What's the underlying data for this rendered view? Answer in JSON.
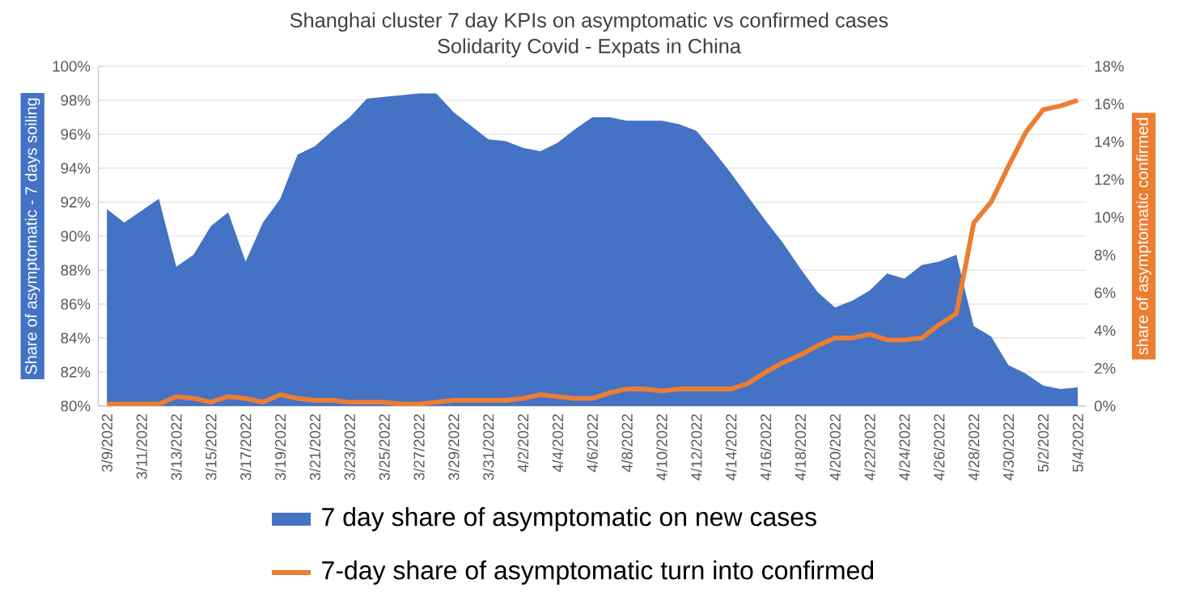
{
  "chart_data": {
    "type": "area",
    "title": "Shanghai cluster 7 day KPIs on asymptomatic vs confirmed cases",
    "subtitle": "Solidarity Covid - Expats in China",
    "ylabel": "Share of asymptomatic - 7 days soiling",
    "y2label": "share of asymptomatic confirmed",
    "categories": [
      "3/9/2022",
      null,
      "3/11/2022",
      null,
      "3/13/2022",
      null,
      "3/15/2022",
      null,
      "3/17/2022",
      null,
      "3/19/2022",
      null,
      "3/21/2022",
      null,
      "3/23/2022",
      null,
      "3/25/2022",
      null,
      "3/27/2022",
      null,
      "3/29/2022",
      null,
      "3/31/2022",
      null,
      "4/2/2022",
      null,
      "4/4/2022",
      null,
      "4/6/2022",
      null,
      "4/8/2022",
      null,
      "4/10/2022",
      null,
      "4/12/2022",
      null,
      "4/14/2022",
      null,
      "4/16/2022",
      null,
      "4/18/2022",
      null,
      "4/20/2022",
      null,
      "4/22/2022",
      null,
      "4/24/2022",
      null,
      "4/26/2022",
      null,
      "4/28/2022",
      null,
      "4/30/2022",
      null,
      "5/2/2022",
      null,
      "5/4/2022"
    ],
    "series": [
      {
        "name": "7 day share of asymptomatic on new cases",
        "color": "#4472c4",
        "values": [
          91.6,
          90.8,
          91.5,
          92.2,
          88.2,
          88.9,
          90.6,
          91.4,
          88.5,
          90.8,
          92.2,
          94.8,
          95.3,
          96.2,
          97.0,
          98.1,
          98.2,
          98.3,
          98.4,
          98.4,
          97.3,
          96.5,
          95.7,
          95.6,
          95.2,
          95.0,
          95.5,
          96.3,
          97.0,
          97.0,
          96.8,
          96.8,
          96.8,
          96.6,
          96.2,
          95.0,
          93.7,
          92.3,
          90.9,
          89.6,
          88.1,
          86.7,
          85.8,
          86.2,
          86.8,
          87.8,
          87.5,
          88.3,
          88.5,
          88.9,
          84.7,
          84.1,
          82.4,
          81.9,
          81.2,
          81.0,
          81.1
        ]
      },
      {
        "name": "7-day share of asymptomatic turn into confirmed",
        "type": "line",
        "axis": "y2",
        "color": "#ed7d31",
        "values": [
          0.1,
          0.1,
          0.1,
          0.1,
          0.5,
          0.4,
          0.2,
          0.5,
          0.4,
          0.2,
          0.6,
          0.4,
          0.3,
          0.3,
          0.2,
          0.2,
          0.2,
          0.1,
          0.1,
          0.2,
          0.3,
          0.3,
          0.3,
          0.3,
          0.4,
          0.6,
          0.5,
          0.4,
          0.4,
          0.7,
          0.9,
          0.9,
          0.8,
          0.9,
          0.9,
          0.9,
          0.9,
          1.2,
          1.8,
          2.3,
          2.7,
          3.2,
          3.6,
          3.6,
          3.8,
          3.5,
          3.5,
          3.6,
          4.3,
          4.9,
          9.7,
          10.8,
          12.7,
          14.5,
          15.7,
          15.9,
          16.2
        ]
      }
    ],
    "ylim": [
      80,
      100
    ],
    "yticks": [
      {
        "value": 80,
        "label": "80%"
      },
      {
        "value": 82,
        "label": "82%"
      },
      {
        "value": 84,
        "label": "84%"
      },
      {
        "value": 86,
        "label": "86%"
      },
      {
        "value": 88,
        "label": "88%"
      },
      {
        "value": 90,
        "label": "90%"
      },
      {
        "value": 92,
        "label": "92%"
      },
      {
        "value": 94,
        "label": "94%"
      },
      {
        "value": 96,
        "label": "96%"
      },
      {
        "value": 98,
        "label": "98%"
      },
      {
        "value": 100,
        "label": "100%"
      }
    ],
    "y2lim": [
      0,
      18
    ],
    "y2ticks": [
      {
        "value": 0,
        "label": "0%"
      },
      {
        "value": 2,
        "label": "2%"
      },
      {
        "value": 4,
        "label": "4%"
      },
      {
        "value": 6,
        "label": "6%"
      },
      {
        "value": 8,
        "label": "8%"
      },
      {
        "value": 10,
        "label": "10%"
      },
      {
        "value": 12,
        "label": "12%"
      },
      {
        "value": 14,
        "label": "14%"
      },
      {
        "value": 16,
        "label": "16%"
      },
      {
        "value": 18,
        "label": "18%"
      }
    ],
    "grid": "y",
    "legend": "bottom",
    "marker": "none",
    "line_style": "solid"
  }
}
